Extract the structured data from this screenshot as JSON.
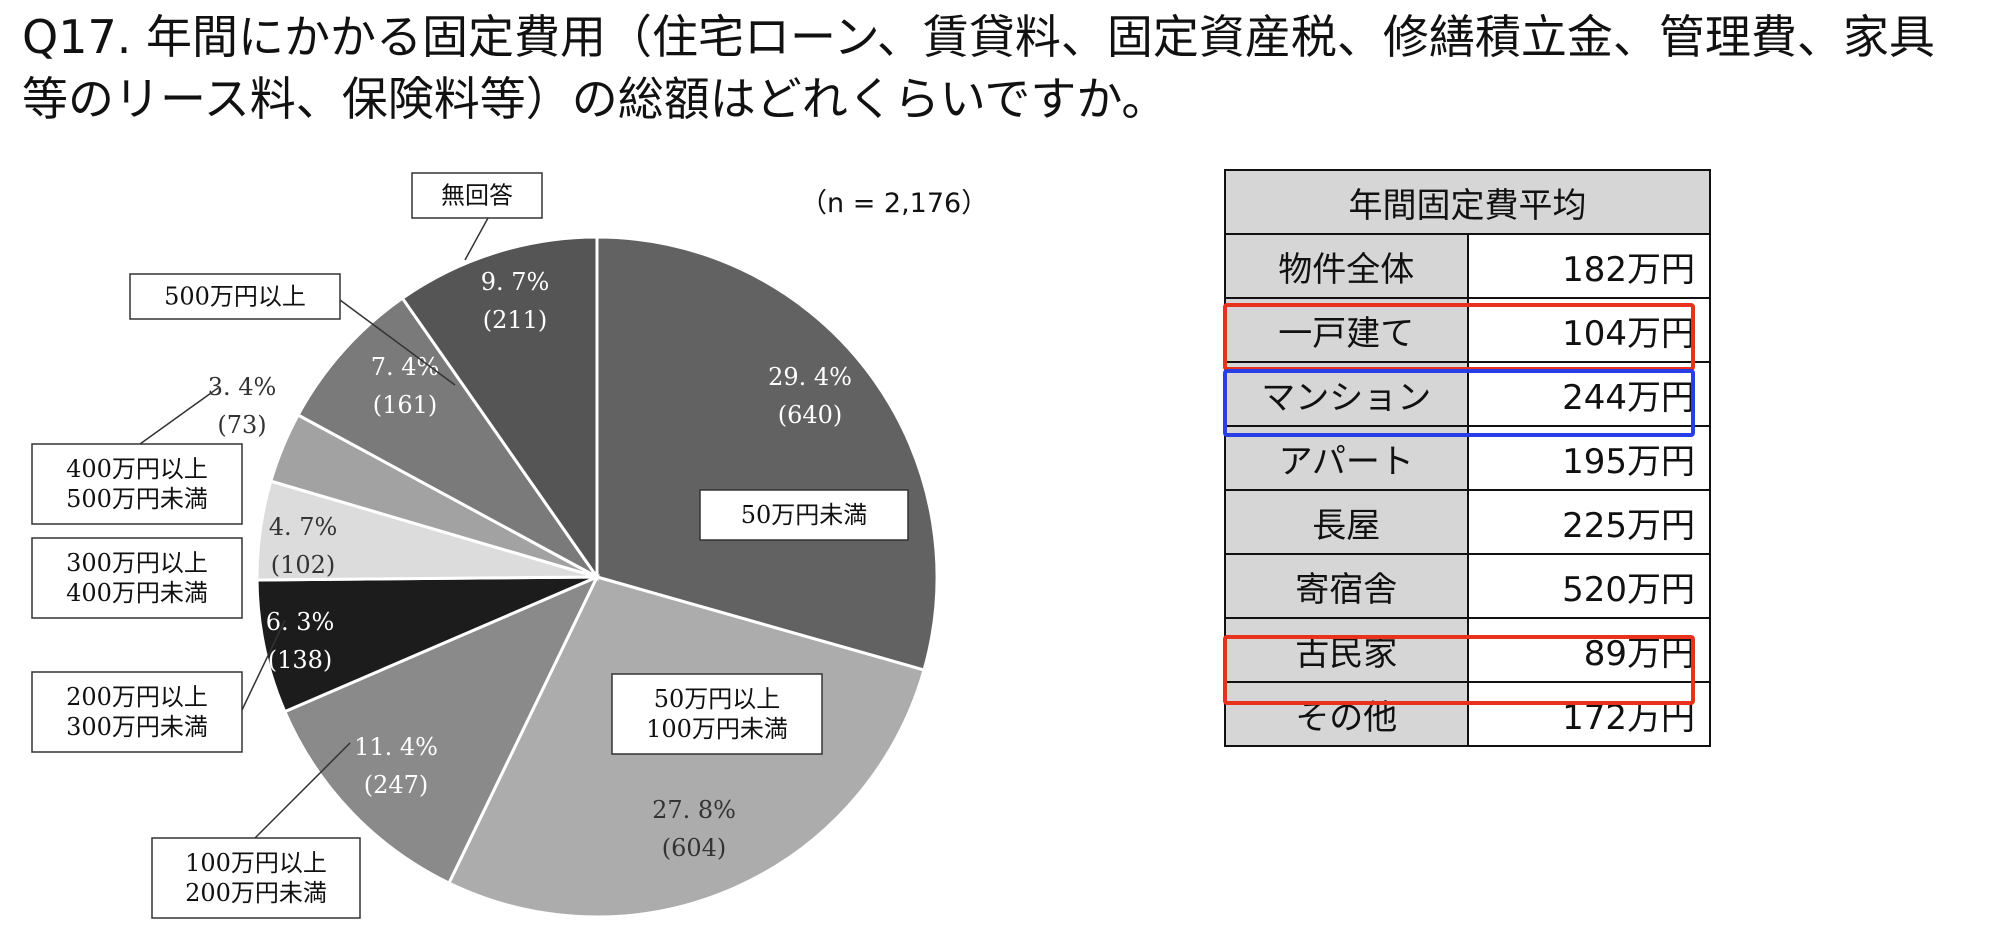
{
  "title": {
    "line1": "Q17. 年間にかかる固定費用（住宅ローン、賃貸料、固定資産税、修繕積立金、管理費、家具",
    "line2": "等のリース料、保険料等）の総額はどれくらいですか。"
  },
  "chart_data": {
    "type": "pie",
    "note": "（n = 2,176）",
    "slices": [
      {
        "category": "50万円未満",
        "percent": 29.4,
        "count": 640,
        "pct_label": "29. 4%",
        "count_label": "(640)",
        "color": "#626262"
      },
      {
        "category": "50万円以上\n100万円未満",
        "percent": 27.8,
        "count": 604,
        "pct_label": "27. 8%",
        "count_label": "(604)",
        "color": "#acacac"
      },
      {
        "category": "100万円以上\n200万円未満",
        "percent": 11.4,
        "count": 247,
        "pct_label": "11. 4%",
        "count_label": "(247)",
        "color": "#8a8a8a"
      },
      {
        "category": "200万円以上\n300万円未満",
        "percent": 6.3,
        "count": 138,
        "pct_label": "6. 3%",
        "count_label": "(138)",
        "color": "#1c1c1c"
      },
      {
        "category": "300万円以上\n400万円未満",
        "percent": 4.7,
        "count": 102,
        "pct_label": "4. 7%",
        "count_label": "(102)",
        "color": "#dcdcdc"
      },
      {
        "category": "400万円以上\n500万円未満",
        "percent": 3.4,
        "count": 73,
        "pct_label": "3. 4%",
        "count_label": "(73)",
        "color": "#a2a2a2"
      },
      {
        "category": "500万円以上",
        "percent": 7.4,
        "count": 161,
        "pct_label": "7. 4%",
        "count_label": "(161)",
        "color": "#7a7a7a"
      },
      {
        "category": "無回答",
        "percent": 9.7,
        "count": 211,
        "pct_label": "9. 7%",
        "count_label": "(211)",
        "color": "#555555"
      }
    ]
  },
  "table": {
    "header": "年間固定費平均",
    "rows": [
      {
        "label": "物件全体",
        "value": "182万円"
      },
      {
        "label": "一戸建て",
        "value": "104万円"
      },
      {
        "label": "マンション",
        "value": "244万円"
      },
      {
        "label": "アパート",
        "value": "195万円"
      },
      {
        "label": "長屋",
        "value": "225万円"
      },
      {
        "label": "寄宿舎",
        "value": "520万円"
      },
      {
        "label": "古民家",
        "value": "89万円"
      },
      {
        "label": "その他",
        "value": "172万円"
      }
    ],
    "highlight_colors": {
      "red": "#e8321e",
      "blue": "#2a3ee8"
    }
  }
}
